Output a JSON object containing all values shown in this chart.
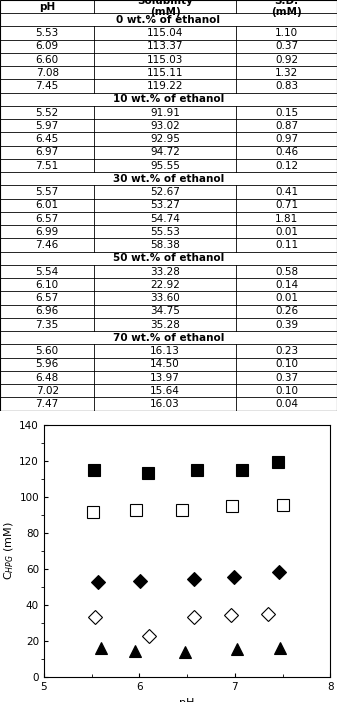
{
  "table": {
    "headers": [
      "pH",
      "Solubility\n(mM)",
      "S.D.\n(mM)"
    ],
    "sections": [
      {
        "title": "0 wt.% of ethanol",
        "rows": [
          [
            5.53,
            115.04,
            1.1
          ],
          [
            6.09,
            113.37,
            0.37
          ],
          [
            6.6,
            115.03,
            0.92
          ],
          [
            7.08,
            115.11,
            1.32
          ],
          [
            7.45,
            119.22,
            0.83
          ]
        ]
      },
      {
        "title": "10 wt.% of ethanol",
        "rows": [
          [
            5.52,
            91.91,
            0.15
          ],
          [
            5.97,
            93.02,
            0.87
          ],
          [
            6.45,
            92.95,
            0.97
          ],
          [
            6.97,
            94.72,
            0.46
          ],
          [
            7.51,
            95.55,
            0.12
          ]
        ]
      },
      {
        "title": "30 wt.% of ethanol",
        "rows": [
          [
            5.57,
            52.67,
            0.41
          ],
          [
            6.01,
            53.27,
            0.71
          ],
          [
            6.57,
            54.74,
            1.81
          ],
          [
            6.99,
            55.53,
            0.01
          ],
          [
            7.46,
            58.38,
            0.11
          ]
        ]
      },
      {
        "title": "50 wt.% of ethanol",
        "rows": [
          [
            5.54,
            33.28,
            0.58
          ],
          [
            6.1,
            22.92,
            0.14
          ],
          [
            6.57,
            33.6,
            0.01
          ],
          [
            6.96,
            34.75,
            0.26
          ],
          [
            7.35,
            35.28,
            0.39
          ]
        ]
      },
      {
        "title": "70 wt.% of ethanol",
        "rows": [
          [
            5.6,
            16.13,
            0.23
          ],
          [
            5.96,
            14.5,
            0.1
          ],
          [
            6.48,
            13.97,
            0.37
          ],
          [
            7.02,
            15.64,
            0.1
          ],
          [
            7.47,
            16.03,
            0.04
          ]
        ]
      }
    ]
  },
  "plot": {
    "series": [
      {
        "label": "0 wt.% ethanol",
        "pH": [
          5.53,
          6.09,
          6.6,
          7.08,
          7.45
        ],
        "solubility": [
          115.04,
          113.37,
          115.03,
          115.11,
          119.22
        ],
        "marker": "s",
        "filled": true,
        "color": "black",
        "markersize": 8
      },
      {
        "label": "10 wt.% ethanol",
        "pH": [
          5.52,
          5.97,
          6.45,
          6.97,
          7.51
        ],
        "solubility": [
          91.91,
          93.02,
          92.95,
          94.72,
          95.55
        ],
        "marker": "s",
        "filled": false,
        "color": "black",
        "markersize": 8
      },
      {
        "label": "30 wt.% ethanol",
        "pH": [
          5.57,
          6.01,
          6.57,
          6.99,
          7.46
        ],
        "solubility": [
          52.67,
          53.27,
          54.74,
          55.53,
          58.38
        ],
        "marker": "D",
        "filled": true,
        "color": "black",
        "markersize": 7
      },
      {
        "label": "50 wt.% ethanol",
        "pH": [
          5.54,
          6.1,
          6.57,
          6.96,
          7.35
        ],
        "solubility": [
          33.28,
          22.92,
          33.6,
          34.75,
          35.28
        ],
        "marker": "D",
        "filled": false,
        "color": "black",
        "markersize": 7
      },
      {
        "label": "70 wt.% ethanol",
        "pH": [
          5.6,
          5.96,
          6.48,
          7.02,
          7.47
        ],
        "solubility": [
          16.13,
          14.5,
          13.97,
          15.64,
          16.03
        ],
        "marker": "^",
        "filled": true,
        "color": "black",
        "markersize": 8
      }
    ],
    "xlabel": "pH",
    "ylabel": "C$_{HPG}$ (mM)",
    "xlim": [
      5,
      8
    ],
    "ylim": [
      0,
      140
    ],
    "yticks": [
      0,
      20,
      40,
      60,
      80,
      100,
      120,
      140
    ],
    "xticks": [
      5,
      6,
      7,
      8
    ]
  },
  "table_font_size": 7.5,
  "header_font_size": 7.5,
  "section_font_size": 7.5
}
